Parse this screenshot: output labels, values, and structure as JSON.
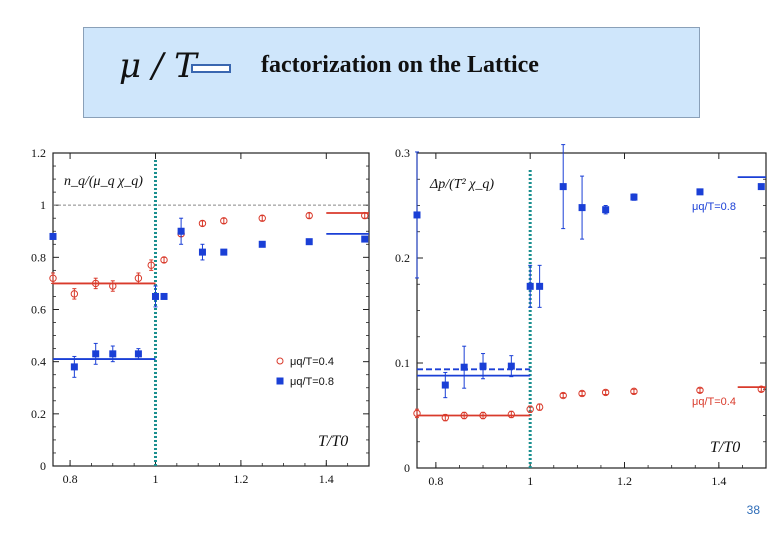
{
  "slide": {
    "title_symbol": "μ / T",
    "title_text": "factorization on the Lattice",
    "page_number": "38"
  },
  "colors": {
    "red": "#d93a2b",
    "blue": "#1a3fd6",
    "teal": "#1a8f8f",
    "grid": "#888888"
  },
  "chart_data": [
    {
      "type": "scatter",
      "ylabel": "n_q/(μ_q χ_q)",
      "xlabel": "T/T0",
      "xlim": [
        0.76,
        1.5
      ],
      "ylim": [
        0,
        1.2
      ],
      "x_ticks": [
        "0.8",
        "1",
        "1.2",
        "1.4"
      ],
      "y_ticks": [
        "0",
        "0.2",
        "0.4",
        "0.6",
        "0.8",
        "1",
        "1.2"
      ],
      "reference_line_y": 1.0,
      "tc_line_x": 1.0,
      "legend": [
        "μq/T=0.4",
        "μq/T=0.8"
      ],
      "series": [
        {
          "name": "μq/T=0.4",
          "marker": "open-circle",
          "color": "red",
          "points": [
            [
              0.76,
              0.72
            ],
            [
              0.81,
              0.66
            ],
            [
              0.86,
              0.7
            ],
            [
              0.9,
              0.69
            ],
            [
              0.96,
              0.72
            ],
            [
              0.99,
              0.77
            ],
            [
              1.02,
              0.79
            ],
            [
              1.06,
              0.89
            ],
            [
              1.11,
              0.93
            ],
            [
              1.16,
              0.94
            ],
            [
              1.25,
              0.95
            ],
            [
              1.36,
              0.96
            ],
            [
              1.49,
              0.96
            ]
          ],
          "errors": [
            0.02,
            0.02,
            0.02,
            0.02,
            0.02,
            0.02,
            0.01,
            0.01,
            0.01,
            0.01,
            0.01,
            0.01,
            0.01
          ],
          "level_lines": [
            {
              "x": [
                0.76,
                1.0
              ],
              "y": 0.7
            },
            {
              "x": [
                1.4,
                1.5
              ],
              "y": 0.97
            }
          ]
        },
        {
          "name": "μq/T=0.8",
          "marker": "filled-square",
          "color": "blue",
          "points": [
            [
              0.76,
              0.88
            ],
            [
              0.81,
              0.38
            ],
            [
              0.86,
              0.43
            ],
            [
              0.9,
              0.43
            ],
            [
              0.96,
              0.43
            ],
            [
              1.0,
              0.65
            ],
            [
              1.02,
              0.65
            ],
            [
              1.06,
              0.9
            ],
            [
              1.11,
              0.82
            ],
            [
              1.16,
              0.82
            ],
            [
              1.25,
              0.85
            ],
            [
              1.36,
              0.86
            ],
            [
              1.49,
              0.87
            ]
          ],
          "errors": [
            0.0,
            0.04,
            0.04,
            0.03,
            0.02,
            0.04,
            0.0,
            0.05,
            0.03,
            0.0,
            0.0,
            0.0,
            0.0
          ],
          "level_lines": [
            {
              "x": [
                0.76,
                1.0
              ],
              "y": 0.41
            },
            {
              "x": [
                1.4,
                1.5
              ],
              "y": 0.89
            }
          ]
        }
      ]
    },
    {
      "type": "scatter",
      "ylabel": "Δp/(T² χ_q)",
      "xlabel": "T/T0",
      "xlim": [
        0.76,
        1.5
      ],
      "ylim": [
        0,
        0.3
      ],
      "x_ticks": [
        "0.8",
        "1",
        "1.2",
        "1.4"
      ],
      "y_ticks": [
        "0",
        "0.1",
        "0.2",
        "0.3"
      ],
      "tc_line_x": 1.0,
      "legend": [
        "μq/T=0.8",
        "μq/T=0.4"
      ],
      "series": [
        {
          "name": "μq/T=0.8",
          "marker": "filled-square",
          "color": "blue",
          "points": [
            [
              0.76,
              0.241
            ],
            [
              0.82,
              0.079
            ],
            [
              0.86,
              0.096
            ],
            [
              0.9,
              0.097
            ],
            [
              0.96,
              0.097
            ],
            [
              1.0,
              0.173
            ],
            [
              1.02,
              0.173
            ],
            [
              1.07,
              0.268
            ],
            [
              1.11,
              0.248
            ],
            [
              1.16,
              0.246
            ],
            [
              1.22,
              0.258
            ],
            [
              1.36,
              0.263
            ],
            [
              1.49,
              0.268
            ]
          ],
          "errors": [
            0.06,
            0.012,
            0.02,
            0.012,
            0.01,
            0.02,
            0.02,
            0.04,
            0.03,
            0.004,
            0.003,
            0.0,
            0.0
          ],
          "level_lines": [
            {
              "x": [
                0.76,
                1.0
              ],
              "y": 0.094
            },
            {
              "x": [
                0.76,
                1.0
              ],
              "y": 0.088
            },
            {
              "x": [
                1.44,
                1.5
              ],
              "y": 0.277
            }
          ]
        },
        {
          "name": "μq/T=0.4",
          "marker": "open-circle",
          "color": "red",
          "points": [
            [
              0.76,
              0.052
            ],
            [
              0.82,
              0.048
            ],
            [
              0.86,
              0.05
            ],
            [
              0.9,
              0.05
            ],
            [
              0.96,
              0.051
            ],
            [
              1.0,
              0.056
            ],
            [
              1.02,
              0.058
            ],
            [
              1.07,
              0.069
            ],
            [
              1.11,
              0.071
            ],
            [
              1.16,
              0.072
            ],
            [
              1.22,
              0.073
            ],
            [
              1.36,
              0.074
            ],
            [
              1.49,
              0.075
            ]
          ],
          "errors": [
            0.004,
            0.003,
            0.003,
            0.003,
            0.003,
            0.003,
            0.003,
            0.002,
            0.002,
            0.002,
            0.002,
            0.002,
            0.002
          ],
          "level_lines": [
            {
              "x": [
                0.76,
                1.0
              ],
              "y": 0.05
            },
            {
              "x": [
                1.44,
                1.5
              ],
              "y": 0.077
            }
          ]
        }
      ]
    }
  ]
}
